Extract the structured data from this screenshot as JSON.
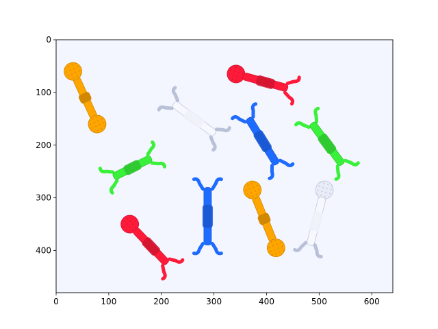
{
  "chart_data": {
    "type": "image",
    "description_source": "matplotlib imshow of a photo",
    "x_ticks": [
      0,
      100,
      200,
      300,
      400,
      500,
      600
    ],
    "y_ticks": [
      0,
      100,
      200,
      300,
      400
    ],
    "xlim": [
      0,
      640
    ],
    "ylim": [
      480,
      0
    ],
    "grid": false,
    "objects": [
      {
        "name": "orange-ball-connector-1",
        "color": "#FFA500",
        "x1": 32,
        "y1": 60,
        "x2": 78,
        "y2": 160
      },
      {
        "name": "red-ball-claw-connector-1",
        "color": "#FF1A3A",
        "x1": 342,
        "y1": 65,
        "x2": 450,
        "y2": 95
      },
      {
        "name": "clear-claw-connector-1",
        "color": "#E8ECF8",
        "x1": 215,
        "y1": 115,
        "x2": 310,
        "y2": 185
      },
      {
        "name": "blue-claw-connector-1",
        "color": "#1E6BFF",
        "x1": 360,
        "y1": 140,
        "x2": 425,
        "y2": 245
      },
      {
        "name": "green-claw-connector-1",
        "color": "#39F03A",
        "x1": 480,
        "y1": 150,
        "x2": 550,
        "y2": 245
      },
      {
        "name": "green-claw-connector-2",
        "color": "#39F03A",
        "x1": 100,
        "y1": 265,
        "x2": 190,
        "y2": 220
      },
      {
        "name": "blue-claw-connector-2",
        "color": "#1E6BFF",
        "x1": 288,
        "y1": 270,
        "x2": 288,
        "y2": 400
      },
      {
        "name": "orange-ball-connector-2",
        "color": "#FFA500",
        "x1": 373,
        "y1": 285,
        "x2": 418,
        "y2": 395
      },
      {
        "name": "clear-ball-claw-connector-1",
        "color": "#E8ECF8",
        "x1": 510,
        "y1": 285,
        "x2": 480,
        "y2": 400
      },
      {
        "name": "red-ball-claw-connector-2",
        "color": "#FF1A3A",
        "x1": 140,
        "y1": 350,
        "x2": 218,
        "y2": 432
      }
    ],
    "colors": {
      "background": "#F4F6FF",
      "axis": "#000000"
    }
  }
}
